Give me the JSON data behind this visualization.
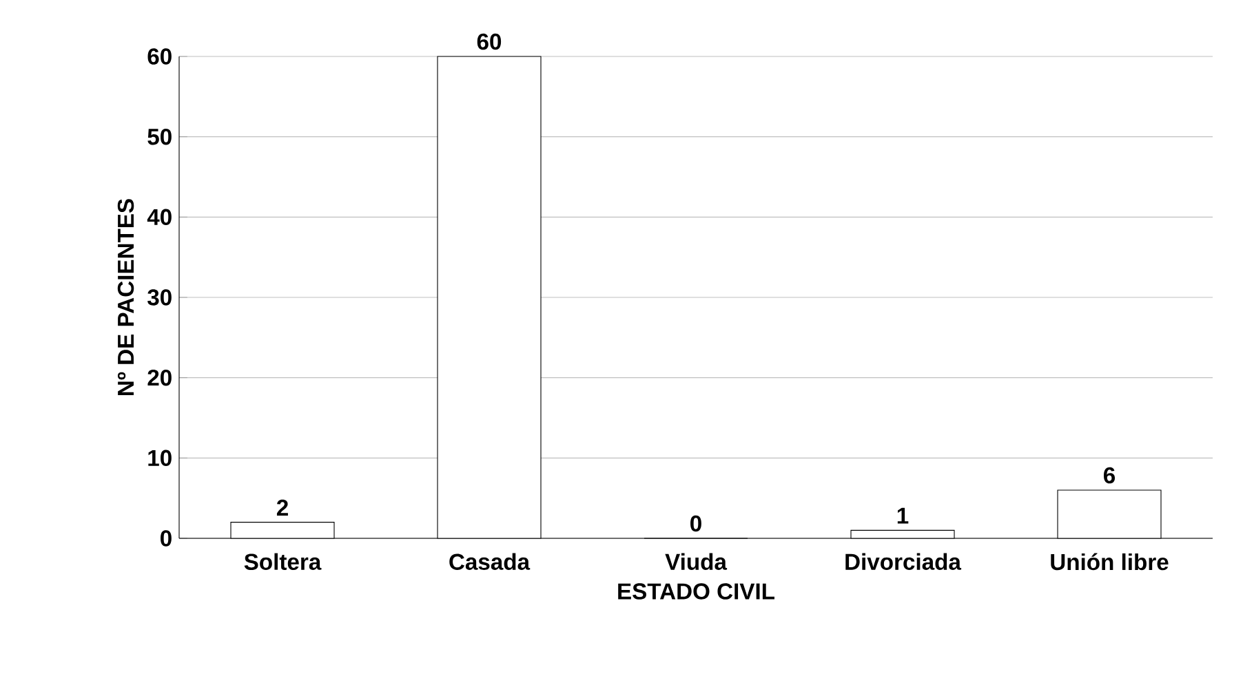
{
  "chart_data": {
    "type": "bar",
    "xlabel": "ESTADO CIVIL",
    "ylabel": "Nº DE PACIENTES",
    "categories": [
      "Soltera",
      "Casada",
      "Viuda",
      "Divorciada",
      "Unión libre"
    ],
    "values": [
      2,
      60,
      0,
      1,
      6
    ],
    "color": "#ffffff",
    "ylim": [
      0,
      60
    ],
    "yticks": [
      0,
      10,
      20,
      30,
      40,
      50,
      60
    ],
    "grid": "y",
    "data_labels": true
  }
}
